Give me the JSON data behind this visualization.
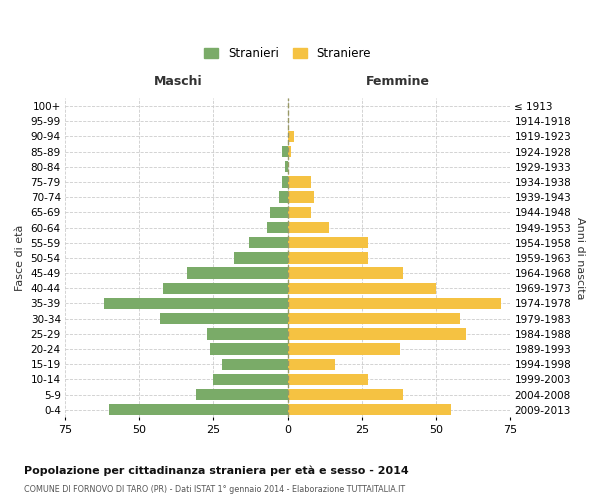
{
  "age_groups": [
    "100+",
    "95-99",
    "90-94",
    "85-89",
    "80-84",
    "75-79",
    "70-74",
    "65-69",
    "60-64",
    "55-59",
    "50-54",
    "45-49",
    "40-44",
    "35-39",
    "30-34",
    "25-29",
    "20-24",
    "15-19",
    "10-14",
    "5-9",
    "0-4"
  ],
  "birth_years": [
    "≤ 1913",
    "1914-1918",
    "1919-1923",
    "1924-1928",
    "1929-1933",
    "1934-1938",
    "1939-1943",
    "1944-1948",
    "1949-1953",
    "1954-1958",
    "1959-1963",
    "1964-1968",
    "1969-1973",
    "1974-1978",
    "1979-1983",
    "1984-1988",
    "1989-1993",
    "1994-1998",
    "1999-2003",
    "2004-2008",
    "2009-2013"
  ],
  "males": [
    0,
    0,
    0,
    2,
    1,
    2,
    3,
    6,
    7,
    13,
    18,
    34,
    42,
    62,
    43,
    27,
    26,
    22,
    25,
    31,
    60
  ],
  "females": [
    0,
    0,
    2,
    1,
    0,
    8,
    9,
    8,
    14,
    27,
    27,
    39,
    50,
    72,
    58,
    60,
    38,
    16,
    27,
    39,
    55
  ],
  "male_color": "#7aab68",
  "female_color": "#f5c242",
  "bg_color": "#ffffff",
  "grid_color": "#cccccc",
  "title": "Popolazione per cittadinanza straniera per età e sesso - 2014",
  "subtitle": "COMUNE DI FORNOVO DI TARO (PR) - Dati ISTAT 1° gennaio 2014 - Elaborazione TUTTAITALIA.IT",
  "ylabel_left": "Fasce di età",
  "ylabel_right": "Anni di nascita",
  "header_left": "Maschi",
  "header_right": "Femmine",
  "legend_male": "Stranieri",
  "legend_female": "Straniere",
  "xlim": 75
}
